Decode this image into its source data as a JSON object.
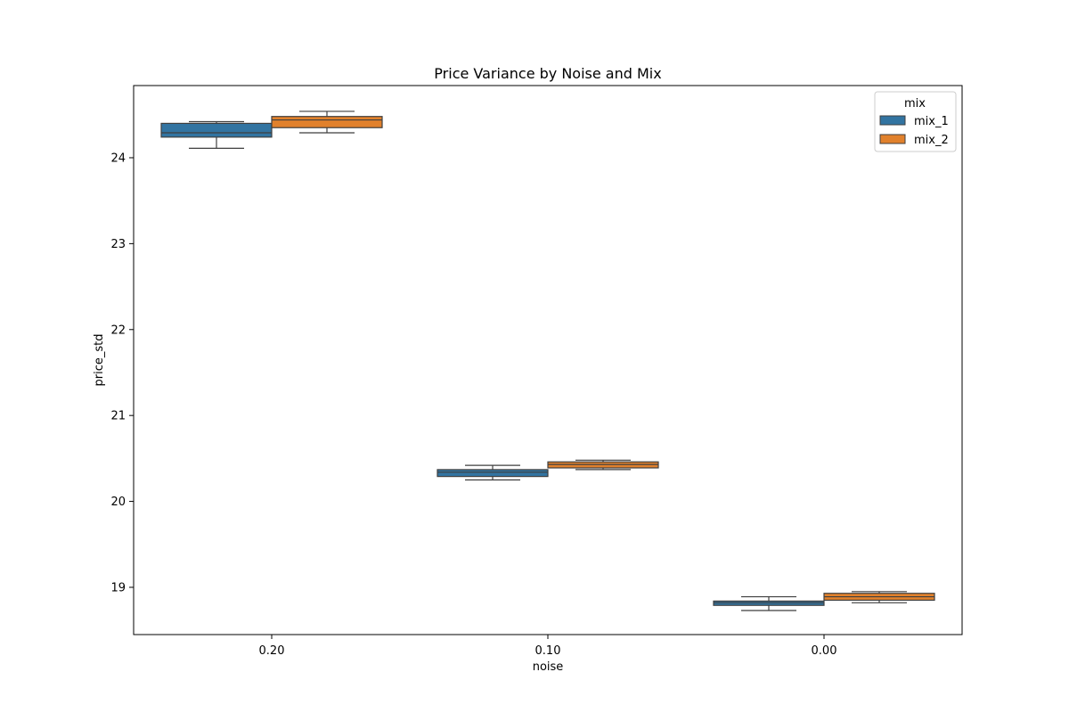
{
  "chart_data": {
    "type": "box",
    "title": "Price Variance by Noise and Mix",
    "xlabel": "noise",
    "ylabel": "price_std",
    "categories": [
      "0.20",
      "0.10",
      "0.00"
    ],
    "yticks": [
      19,
      20,
      21,
      22,
      23,
      24
    ],
    "ylim": [
      18.45,
      24.84
    ],
    "grid": false,
    "legend": {
      "title": "mix",
      "placement": "top-right"
    },
    "series": [
      {
        "name": "mix_1",
        "color": "#3274a1",
        "boxes": [
          {
            "whisker_low": 24.11,
            "q1": 24.24,
            "median": 24.29,
            "q3": 24.4,
            "whisker_high": 24.42
          },
          {
            "whisker_low": 20.25,
            "q1": 20.29,
            "median": 20.34,
            "q3": 20.37,
            "whisker_high": 20.42
          },
          {
            "whisker_low": 18.73,
            "q1": 18.79,
            "median": 18.82,
            "q3": 18.84,
            "whisker_high": 18.89
          }
        ]
      },
      {
        "name": "mix_2",
        "color": "#e1812c",
        "boxes": [
          {
            "whisker_low": 24.29,
            "q1": 24.35,
            "median": 24.44,
            "q3": 24.48,
            "whisker_high": 24.54
          },
          {
            "whisker_low": 20.37,
            "q1": 20.39,
            "median": 20.43,
            "q3": 20.46,
            "whisker_high": 20.48
          },
          {
            "whisker_low": 18.82,
            "q1": 18.85,
            "median": 18.89,
            "q3": 18.93,
            "whisker_high": 18.95
          }
        ]
      }
    ]
  }
}
